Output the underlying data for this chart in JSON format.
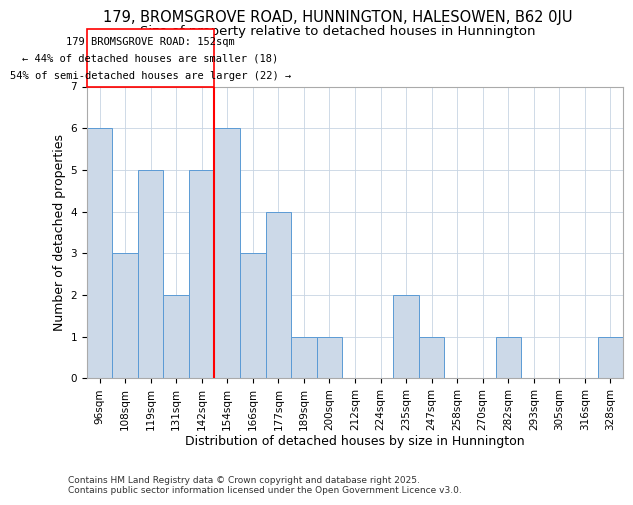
{
  "title1": "179, BROMSGROVE ROAD, HUNNINGTON, HALESOWEN, B62 0JU",
  "title2": "Size of property relative to detached houses in Hunnington",
  "xlabel": "Distribution of detached houses by size in Hunnington",
  "ylabel": "Number of detached properties",
  "categories": [
    "96sqm",
    "108sqm",
    "119sqm",
    "131sqm",
    "142sqm",
    "154sqm",
    "166sqm",
    "177sqm",
    "189sqm",
    "200sqm",
    "212sqm",
    "224sqm",
    "235sqm",
    "247sqm",
    "258sqm",
    "270sqm",
    "282sqm",
    "293sqm",
    "305sqm",
    "316sqm",
    "328sqm"
  ],
  "values": [
    6,
    3,
    5,
    2,
    5,
    6,
    3,
    4,
    1,
    1,
    0,
    0,
    2,
    1,
    0,
    0,
    1,
    0,
    0,
    0,
    1
  ],
  "bar_color": "#ccd9e8",
  "bar_edge_color": "#5b9bd5",
  "vline_color": "red",
  "annotation_title": "179 BROMSGROVE ROAD: 152sqm",
  "annotation_line1": "← 44% of detached houses are smaller (18)",
  "annotation_line2": "54% of semi-detached houses are larger (22) →",
  "ylim": [
    0,
    7
  ],
  "yticks": [
    0,
    1,
    2,
    3,
    4,
    5,
    6,
    7
  ],
  "footnote": "Contains HM Land Registry data © Crown copyright and database right 2025.\nContains public sector information licensed under the Open Government Licence v3.0.",
  "title1_fontsize": 10.5,
  "title2_fontsize": 9.5,
  "xlabel_fontsize": 9,
  "ylabel_fontsize": 9,
  "tick_fontsize": 7.5,
  "annotation_fontsize": 7.5,
  "footnote_fontsize": 6.5,
  "vline_bar_index": 5,
  "n_bars": 21
}
